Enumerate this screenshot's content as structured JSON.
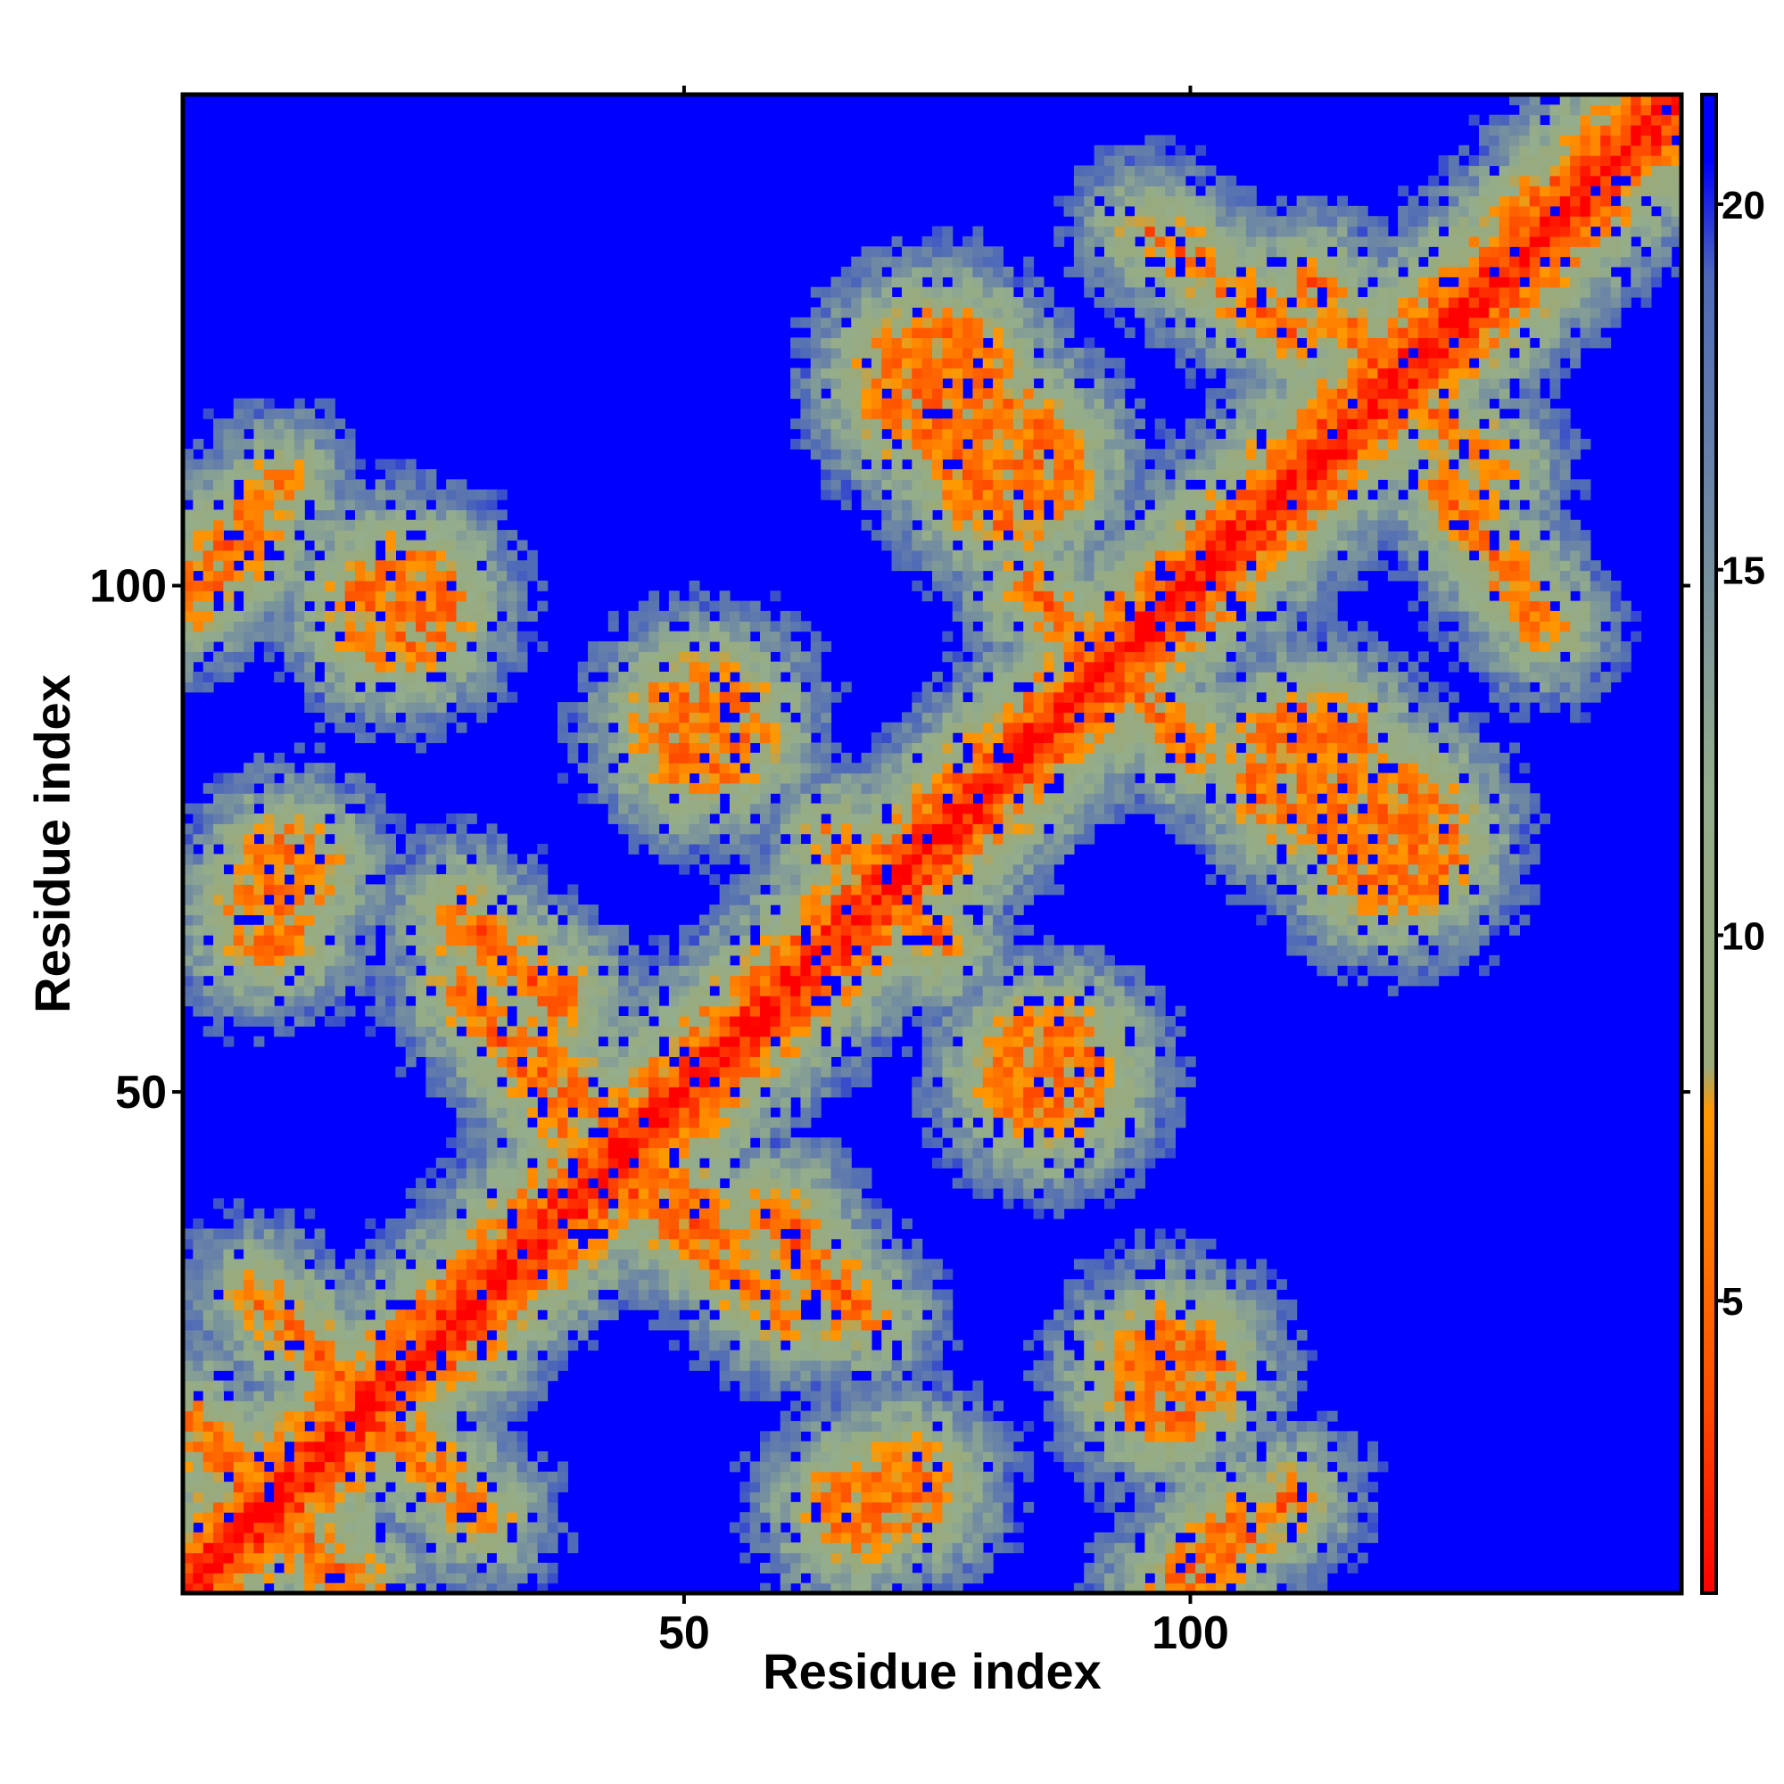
{
  "chart_data": {
    "type": "heatmap",
    "title": "",
    "xlabel": "Residue index",
    "ylabel": "Residue index",
    "n_residues": 148,
    "xlim": [
      1,
      148
    ],
    "ylim": [
      1,
      148
    ],
    "x_ticks": [
      {
        "value": 50,
        "label": "50"
      },
      {
        "value": 100,
        "label": "100"
      }
    ],
    "y_ticks": [
      {
        "value": 50,
        "label": "50"
      },
      {
        "value": 100,
        "label": "100"
      }
    ],
    "colorbar": {
      "min": 1,
      "max": 21.5,
      "ticks": [
        {
          "value": 5,
          "label": "5"
        },
        {
          "value": 10,
          "label": "10"
        },
        {
          "value": 15,
          "label": "15"
        },
        {
          "value": 20,
          "label": "20"
        }
      ],
      "stops": [
        {
          "value": 1,
          "color": "#ff0000"
        },
        {
          "value": 3.8,
          "color": "#ff5000"
        },
        {
          "value": 7.6,
          "color": "#ff9900"
        },
        {
          "value": 8.2,
          "color": "#9aaa7a"
        },
        {
          "value": 12,
          "color": "#94ad8c"
        },
        {
          "value": 19,
          "color": "#4e69b8"
        },
        {
          "value": 20.6,
          "color": "#0000ff"
        }
      ],
      "background_color": "#0000ff"
    },
    "matrix_note": "symmetric distance matrix (Angstrom); main diagonal ~1, far pairs saturate at max",
    "contact_features": [
      {
        "kind": "diagonal",
        "from": 1,
        "to": 148
      },
      {
        "kind": "anti",
        "x": [
          2,
          18
        ],
        "y": [
          15,
          1
        ]
      },
      {
        "kind": "anti",
        "x": [
          10,
          30
        ],
        "y": [
          28,
          8
        ]
      },
      {
        "kind": "anti",
        "x": [
          35,
          53
        ],
        "y": [
          55,
          35
        ]
      },
      {
        "kind": "anti",
        "x": [
          45,
          60
        ],
        "y": [
          40,
          28
        ]
      },
      {
        "kind": "anti",
        "x": [
          58,
          68
        ],
        "y": [
          38,
          28
        ]
      },
      {
        "kind": "anti",
        "x": [
          65,
          74
        ],
        "y": [
          75,
          66
        ]
      },
      {
        "kind": "anti",
        "x": [
          92,
          100
        ],
        "y": [
          92,
          84
        ]
      },
      {
        "kind": "anti",
        "x": [
          100,
          110
        ],
        "y": [
          1,
          10
        ]
      },
      {
        "kind": "anti",
        "x": [
          125,
          135
        ],
        "y": [
          110,
          96
        ]
      },
      {
        "kind": "anti",
        "x": [
          112,
          118
        ],
        "y": [
          130,
          122
        ]
      },
      {
        "kind": "parallel",
        "x": [
          28,
          38
        ],
        "y": [
          66,
          60
        ]
      },
      {
        "kind": "parallel",
        "x": [
          1,
          8
        ],
        "y": [
          98,
          104
        ]
      },
      {
        "kind": "patch",
        "cx": 9,
        "cy": 67,
        "r": 3
      },
      {
        "kind": "patch",
        "cx": 72,
        "cy": 11,
        "r": 3
      },
      {
        "kind": "patch",
        "cx": 52,
        "cy": 86,
        "r": 5
      },
      {
        "kind": "patch",
        "cx": 82,
        "cy": 112,
        "r": 6
      },
      {
        "kind": "patch",
        "cx": 85,
        "cy": 52,
        "r": 4
      },
      {
        "kind": "patch",
        "cx": 120,
        "cy": 75,
        "r": 6
      },
      {
        "kind": "patch",
        "cx": 98,
        "cy": 22,
        "r": 5
      }
    ]
  }
}
